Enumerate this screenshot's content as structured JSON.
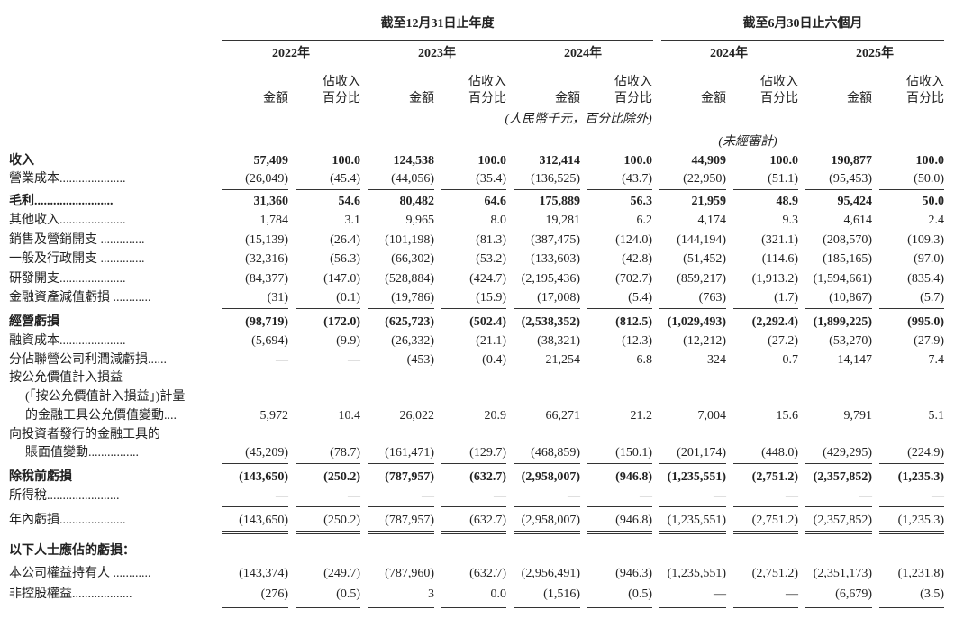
{
  "header": {
    "groups": [
      "截至12月31日止年度",
      "截至6月30日止六個月"
    ],
    "years": [
      "2022年",
      "2023年",
      "2024年",
      "2024年",
      "2025年"
    ],
    "amount_label": "金額",
    "pct_label": [
      "佔收入",
      "百分比"
    ],
    "unit_note": "(人民幣千元，百分比除外)",
    "unaudited_note": "(未經審計)"
  },
  "table": {
    "rows": [
      {
        "label": [
          "收入"
        ],
        "values": [
          "57,409",
          "100.0",
          "124,538",
          "100.0",
          "312,414",
          "100.0",
          "44,909",
          "100.0",
          "190,877",
          "100.0"
        ]
      },
      {
        "label": [
          "營業成本....................."
        ],
        "values": [
          "(26,049)",
          "(45.4)",
          "(44,056)",
          "(35.4)",
          "(136,525)",
          "(43.7)",
          "(22,950)",
          "(51.1)",
          "(95,453)",
          "(50.0)"
        ]
      },
      {
        "label": [
          "毛利........................."
        ],
        "values": [
          "31,360",
          "54.6",
          "80,482",
          "64.6",
          "175,889",
          "56.3",
          "21,959",
          "48.9",
          "95,424",
          "50.0"
        ]
      },
      {
        "label": [
          "其他收入....................."
        ],
        "values": [
          "1,784",
          "3.1",
          "9,965",
          "8.0",
          "19,281",
          "6.2",
          "4,174",
          "9.3",
          "4,614",
          "2.4"
        ]
      },
      {
        "label": [
          "銷售及營銷開支 .............."
        ],
        "values": [
          "(15,139)",
          "(26.4)",
          "(101,198)",
          "(81.3)",
          "(387,475)",
          "(124.0)",
          "(144,194)",
          "(321.1)",
          "(208,570)",
          "(109.3)"
        ]
      },
      {
        "label": [
          "一般及行政開支 .............."
        ],
        "values": [
          "(32,316)",
          "(56.3)",
          "(66,302)",
          "(53.2)",
          "(133,603)",
          "(42.8)",
          "(51,452)",
          "(114.6)",
          "(185,165)",
          "(97.0)"
        ]
      },
      {
        "label": [
          "研發開支....................."
        ],
        "values": [
          "(84,377)",
          "(147.0)",
          "(528,884)",
          "(424.7)",
          "(2,195,436)",
          "(702.7)",
          "(859,217)",
          "(1,913.2)",
          "(1,594,661)",
          "(835.4)"
        ]
      },
      {
        "label": [
          "金融資產減值虧損 ............"
        ],
        "values": [
          "(31)",
          "(0.1)",
          "(19,786)",
          "(15.9)",
          "(17,008)",
          "(5.4)",
          "(763)",
          "(1.7)",
          "(10,867)",
          "(5.7)"
        ]
      },
      {
        "label": [
          "經營虧損"
        ],
        "values": [
          "(98,719)",
          "(172.0)",
          "(625,723)",
          "(502.4)",
          "(2,538,352)",
          "(812.5)",
          "(1,029,493)",
          "(2,292.4)",
          "(1,899,225)",
          "(995.0)"
        ]
      },
      {
        "label": [
          "融資成本....................."
        ],
        "values": [
          "(5,694)",
          "(9.9)",
          "(26,332)",
          "(21.1)",
          "(38,321)",
          "(12.3)",
          "(12,212)",
          "(27.2)",
          "(53,270)",
          "(27.9)"
        ]
      },
      {
        "label": [
          "分佔聯營公司利潤減虧損......"
        ],
        "values": [
          "—",
          "—",
          "(453)",
          "(0.4)",
          "21,254",
          "6.8",
          "324",
          "0.7",
          "14,147",
          "7.4"
        ]
      },
      {
        "label": [
          "按公允價值計入損益",
          "(「按公允價值計入損益」)計量",
          "的金融工具公允價值變動...."
        ],
        "values": [
          "5,972",
          "10.4",
          "26,022",
          "20.9",
          "66,271",
          "21.2",
          "7,004",
          "15.6",
          "9,791",
          "5.1"
        ]
      },
      {
        "label": [
          "向投資者發行的金融工具的",
          "賬面值變動................"
        ],
        "values": [
          "(45,209)",
          "(78.7)",
          "(161,471)",
          "(129.7)",
          "(468,859)",
          "(150.1)",
          "(201,174)",
          "(448.0)",
          "(429,295)",
          "(224.9)"
        ]
      },
      {
        "label": [
          "除稅前虧損"
        ],
        "values": [
          "(143,650)",
          "(250.2)",
          "(787,957)",
          "(632.7)",
          "(2,958,007)",
          "(946.8)",
          "(1,235,551)",
          "(2,751.2)",
          "(2,357,852)",
          "(1,235.3)"
        ]
      },
      {
        "label": [
          "所得稅......................."
        ],
        "values": [
          "—",
          "—",
          "—",
          "—",
          "—",
          "—",
          "—",
          "—",
          "—",
          "—"
        ]
      },
      {
        "label": [
          "年內虧損....................."
        ],
        "values": [
          "(143,650)",
          "(250.2)",
          "(787,957)",
          "(632.7)",
          "(2,958,007)",
          "(946.8)",
          "(1,235,551)",
          "(2,751.2)",
          "(2,357,852)",
          "(1,235.3)"
        ]
      },
      {
        "label": [
          "以下人士應佔的虧損："
        ],
        "values": []
      },
      {
        "label": [
          "本公司權益持有人 ............"
        ],
        "values": [
          "(143,374)",
          "(249.7)",
          "(787,960)",
          "(632.7)",
          "(2,956,491)",
          "(946.3)",
          "(1,235,551)",
          "(2,751.2)",
          "(2,351,173)",
          "(1,231.8)"
        ]
      },
      {
        "label": [
          "非控股權益..................."
        ],
        "values": [
          "(276)",
          "(0.5)",
          "3",
          "0.0",
          "(1,516)",
          "(0.5)",
          "—",
          "—",
          "(6,679)",
          "(3.5)"
        ]
      }
    ]
  }
}
